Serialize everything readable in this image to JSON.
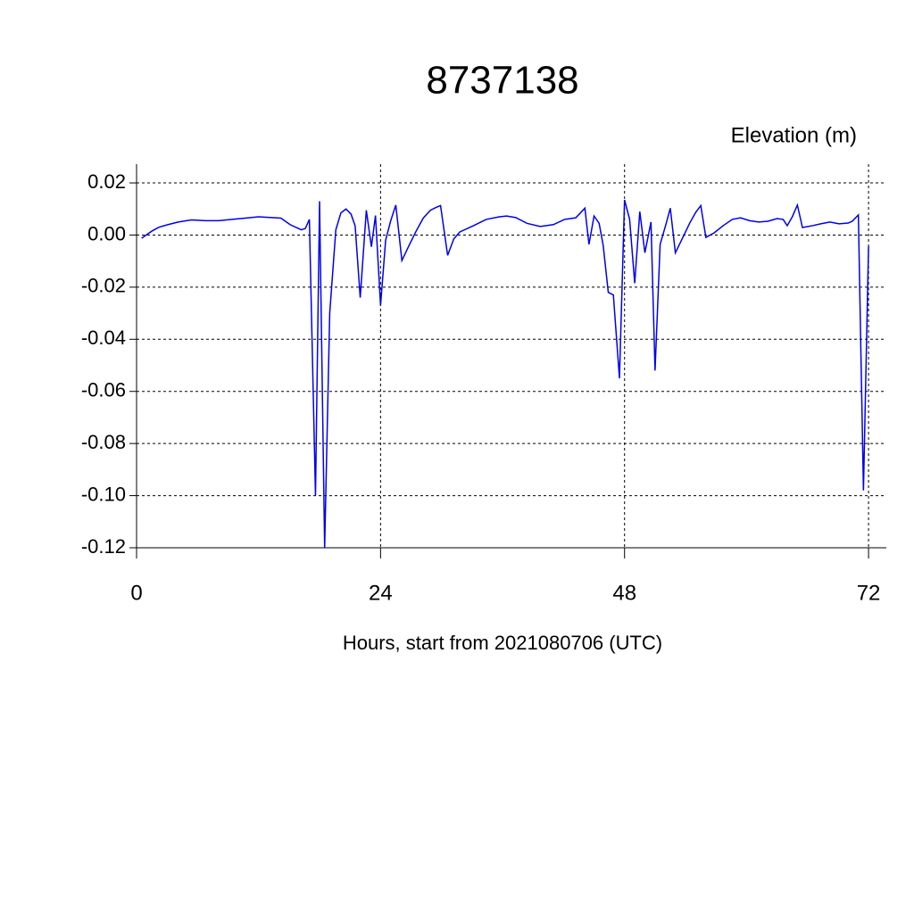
{
  "chart_data": {
    "type": "line",
    "title": "8737138",
    "ylabel": "Elevation (m)",
    "xlabel": "Hours, start from 2021080706 (UTC)",
    "xlim": [
      0,
      73.75
    ],
    "ylim": [
      -0.12,
      0.0272
    ],
    "xticks": [
      0,
      24,
      48,
      72
    ],
    "yticks": [
      0.02,
      {
        "value": 0,
        "label": "0.00"
      },
      -0.02,
      -0.04,
      -0.06,
      -0.08,
      {
        "value": -0.1,
        "label": "-0.10"
      },
      -0.12
    ],
    "grid": true,
    "series": [
      {
        "color": "#0000ee",
        "x": [
          0.5,
          1.5,
          2.2,
          3.1,
          4.1,
          5.4,
          6.8,
          8.1,
          9.4,
          10.7,
          12,
          12.9,
          14.2,
          15.1,
          16.2,
          16.6,
          17,
          17.6,
          18,
          18.5,
          19,
          19.6,
          20.1,
          20.6,
          21.1,
          21.5,
          22,
          22.6,
          23.1,
          23.5,
          24,
          24.5,
          25,
          25.5,
          26.1,
          26.8,
          27.5,
          28.2,
          28.9,
          29.4,
          29.9,
          30.6,
          31.2,
          31.8,
          33.1,
          34.4,
          35.7,
          36.4,
          37.3,
          38.4,
          39.7,
          41,
          42.1,
          43.2,
          44.1,
          44.5,
          45,
          45.5,
          45.9,
          46.4,
          46.9,
          47.5,
          48,
          48.5,
          49,
          49.5,
          50,
          50.6,
          51,
          51.5,
          52.1,
          52.5,
          53,
          53.7,
          54.4,
          55,
          55.5,
          56,
          56.8,
          57.7,
          58.6,
          59.4,
          60.3,
          61.2,
          62.1,
          63,
          63.6,
          64,
          64.5,
          65,
          65.5,
          66.5,
          67.3,
          68.2,
          69.1,
          70,
          70.4,
          71,
          71.5,
          72
        ],
        "values": [
          -0.0012,
          0.0015,
          0.003,
          0.004,
          0.005,
          0.0058,
          0.0055,
          0.0055,
          0.006,
          0.0065,
          0.007,
          0.0068,
          0.0065,
          0.004,
          0.002,
          0.0025,
          0.006,
          -0.1,
          0.013,
          -0.12,
          -0.03,
          0.002,
          0.0085,
          0.01,
          0.008,
          0.0035,
          -0.024,
          0.0095,
          -0.0045,
          0.0075,
          -0.027,
          -0.002,
          0.0055,
          0.0115,
          -0.0098,
          -0.004,
          0.0015,
          0.0065,
          0.0095,
          0.0105,
          0.0113,
          -0.0078,
          -0.0015,
          0.0012,
          0.0035,
          0.006,
          0.007,
          0.0073,
          0.0067,
          0.0045,
          0.0033,
          0.004,
          0.006,
          0.0066,
          0.0103,
          -0.0036,
          0.0073,
          0.0045,
          -0.004,
          -0.022,
          -0.023,
          -0.055,
          0.0135,
          0.006,
          -0.0185,
          0.009,
          -0.0068,
          0.005,
          -0.052,
          -0.0036,
          0.0045,
          0.0103,
          -0.0068,
          -0.0012,
          0.0045,
          0.0087,
          0.0113,
          -0.0009,
          0.0008,
          0.0036,
          0.006,
          0.0066,
          0.0055,
          0.005,
          0.0053,
          0.0063,
          0.006,
          0.0036,
          0.007,
          0.0115,
          0.0029,
          0.0036,
          0.0043,
          0.005,
          0.0043,
          0.0046,
          0.0053,
          0.0077,
          -0.098,
          -0.0043
        ]
      }
    ]
  }
}
